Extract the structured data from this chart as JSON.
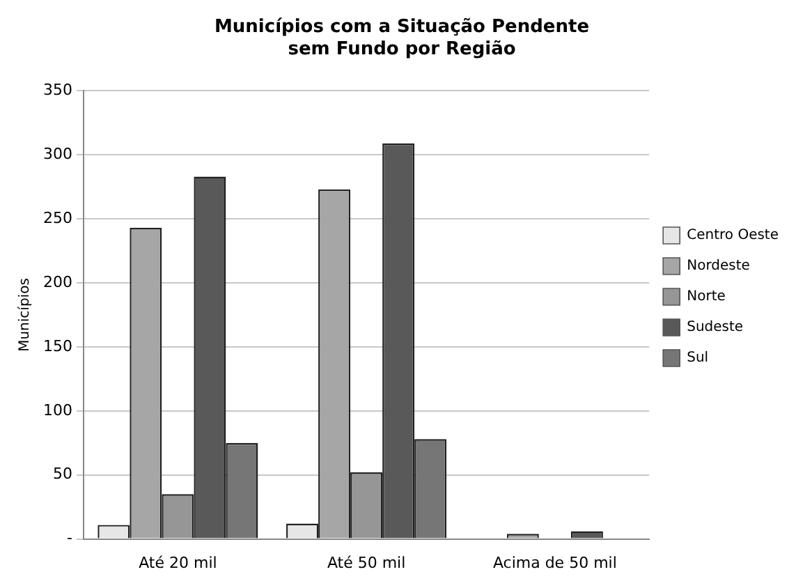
{
  "chart_data": {
    "type": "bar",
    "title": "Municípios com a Situação Pendente\nsem Fundo por Região",
    "ylabel": "Municípios",
    "categories": [
      "Até 20 mil",
      "Até 50 mil",
      "Acima de 50 mil"
    ],
    "series": [
      {
        "name": "Centro Oeste",
        "color": "#e6e6e6",
        "values": [
          11,
          12,
          null
        ]
      },
      {
        "name": "Nordeste",
        "color": "#a6a6a6",
        "values": [
          243,
          273,
          4
        ]
      },
      {
        "name": "Norte",
        "color": "#969696",
        "values": [
          35,
          52,
          null
        ]
      },
      {
        "name": "Sudeste",
        "color": "#595959",
        "values": [
          283,
          309,
          6
        ]
      },
      {
        "name": "Sul",
        "color": "#767676",
        "values": [
          75,
          78,
          null
        ]
      }
    ],
    "ylim": [
      0,
      350
    ],
    "yticks": [
      {
        "value": 0,
        "label": "-"
      },
      50,
      100,
      150,
      200,
      250,
      300,
      350
    ],
    "grid": "y",
    "legend": "right"
  }
}
